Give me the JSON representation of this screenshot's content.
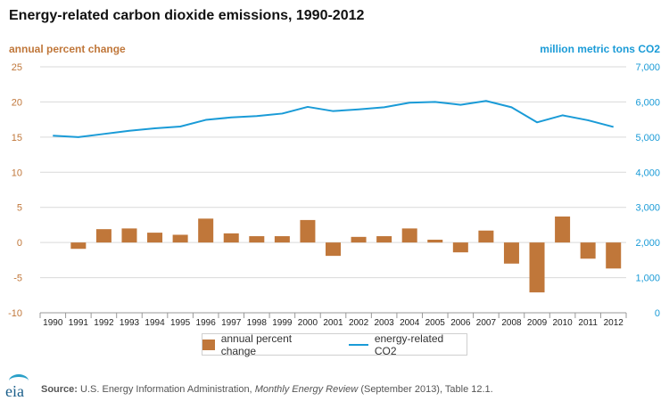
{
  "chart_data": {
    "type": "bar+line",
    "title": "Energy-related carbon dioxide emissions, 1990-2012",
    "left_axis_label": "annual percent change",
    "right_axis_label": "million metric tons CO2",
    "categories": [
      "1990",
      "1991",
      "1992",
      "1993",
      "1994",
      "1995",
      "1996",
      "1997",
      "1998",
      "1999",
      "2000",
      "2001",
      "2002",
      "2003",
      "2004",
      "2005",
      "2006",
      "2007",
      "2008",
      "2009",
      "2010",
      "2011",
      "2012"
    ],
    "series": [
      {
        "name": "annual percent change",
        "type": "bar",
        "axis": "left",
        "color": "#c0773a",
        "values": [
          null,
          -0.9,
          1.9,
          2.0,
          1.4,
          1.1,
          3.4,
          1.3,
          0.9,
          0.9,
          3.2,
          -1.9,
          0.8,
          0.9,
          2.0,
          0.4,
          -1.4,
          1.7,
          -3.0,
          -7.1,
          3.7,
          -2.3,
          -3.7
        ]
      },
      {
        "name": "energy-related CO2",
        "type": "line",
        "axis": "right",
        "color": "#1a9bd7",
        "values": [
          5040,
          5000,
          5090,
          5180,
          5250,
          5300,
          5490,
          5560,
          5600,
          5670,
          5860,
          5740,
          5790,
          5850,
          5980,
          6000,
          5920,
          6030,
          5850,
          5420,
          5620,
          5480,
          5290
        ]
      }
    ],
    "left_axis": {
      "min": -10,
      "max": 25,
      "step": 5,
      "ticks": [
        "-10",
        "-5",
        "0",
        "5",
        "10",
        "15",
        "20",
        "25"
      ]
    },
    "right_axis": {
      "min": 0,
      "max": 7000,
      "step": 1000,
      "ticks": [
        "0",
        "1,000",
        "2,000",
        "3,000",
        "4,000",
        "5,000",
        "6,000",
        "7,000"
      ]
    },
    "grid": "horizontal",
    "legend_position": "bottom"
  },
  "footer": {
    "logo_text": "eia",
    "source_label": "Source:",
    "source_text": "U.S. Energy Information Administration,",
    "source_publication": "Monthly Energy Review",
    "source_tail": "(September 2013), Table 12.1."
  }
}
